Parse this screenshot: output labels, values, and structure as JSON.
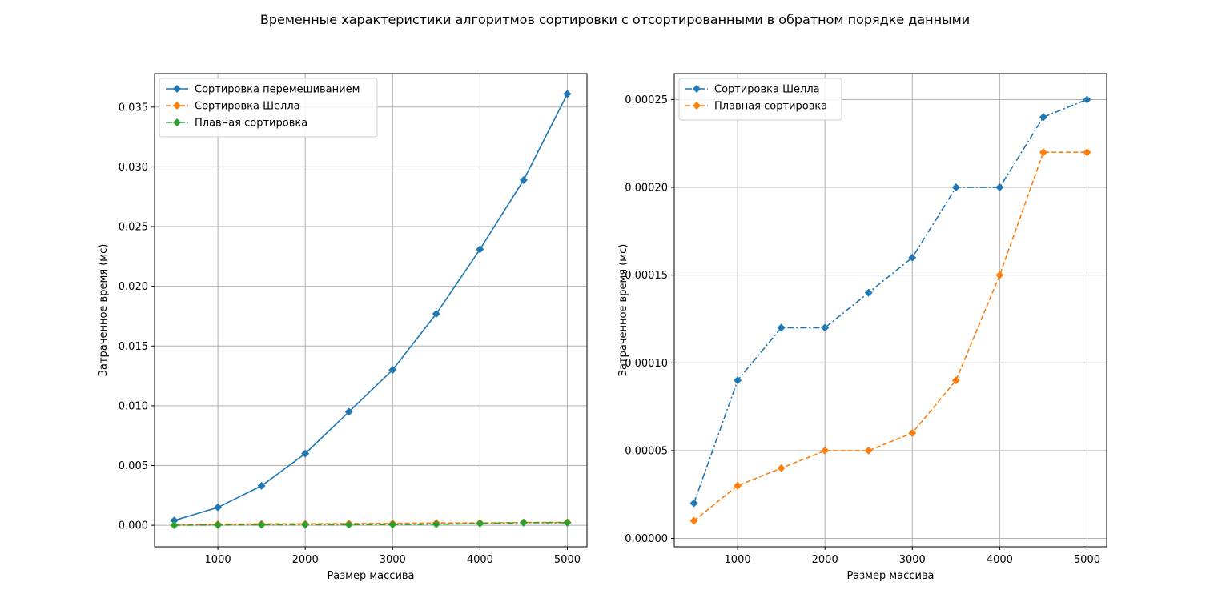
{
  "figure": {
    "title": "Временные характеристики алгоритмов сортировки с отсортированными в обратном порядке данными"
  },
  "colors": {
    "blue": "#1f77b4",
    "orange": "#ff7f0e",
    "green": "#2ca02c",
    "grid": "#b0b0b0"
  },
  "chart_data": [
    {
      "type": "line",
      "title": "",
      "xlabel": "Размер массива",
      "ylabel": "Затраченное время (мс)",
      "xlim": [
        275,
        5225
      ],
      "ylim": [
        -0.0018,
        0.0378
      ],
      "xticks": [
        1000,
        2000,
        3000,
        4000,
        5000
      ],
      "xtick_labels": [
        "1000",
        "2000",
        "3000",
        "4000",
        "5000"
      ],
      "yticks": [
        0,
        0.005,
        0.01,
        0.015,
        0.02,
        0.025,
        0.03,
        0.035
      ],
      "ytick_labels": [
        "0.000",
        "0.005",
        "0.010",
        "0.015",
        "0.020",
        "0.025",
        "0.030",
        "0.035"
      ],
      "grid": true,
      "legend": "upper-left",
      "x": [
        500,
        1000,
        1500,
        2000,
        2500,
        3000,
        3500,
        4000,
        4500,
        5000
      ],
      "series": [
        {
          "name": "Сортировка перемешиванием",
          "color": "#1f77b4",
          "linestyle": "solid",
          "marker": "diamond",
          "values": [
            0.0004,
            0.0015,
            0.0033,
            0.006,
            0.0095,
            0.013,
            0.0177,
            0.0231,
            0.0289,
            0.0361
          ]
        },
        {
          "name": "Сортировка Шелла",
          "color": "#ff7f0e",
          "linestyle": "dashed",
          "marker": "diamond",
          "values": [
            2e-05,
            9e-05,
            0.00012,
            0.00012,
            0.00014,
            0.00016,
            0.0002,
            0.0002,
            0.00024,
            0.00025
          ]
        },
        {
          "name": "Плавная сортировка",
          "color": "#2ca02c",
          "linestyle": "dashdot",
          "marker": "diamond",
          "values": [
            1e-05,
            3e-05,
            4e-05,
            5e-05,
            5e-05,
            6e-05,
            9e-05,
            0.00015,
            0.00022,
            0.00022
          ]
        }
      ]
    },
    {
      "type": "line",
      "title": "",
      "xlabel": "Размер массива",
      "ylabel": "Затраченное время (мс)",
      "xlim": [
        275,
        5225
      ],
      "ylim": [
        -4.8e-06,
        0.0002648
      ],
      "xticks": [
        1000,
        2000,
        3000,
        4000,
        5000
      ],
      "xtick_labels": [
        "1000",
        "2000",
        "3000",
        "4000",
        "5000"
      ],
      "yticks": [
        0,
        5e-05,
        0.0001,
        0.00015,
        0.0002,
        0.00025
      ],
      "ytick_labels": [
        "0.00000",
        "0.00005",
        "0.00010",
        "0.00015",
        "0.00020",
        "0.00025"
      ],
      "grid": true,
      "legend": "upper-left",
      "x": [
        500,
        1000,
        1500,
        2000,
        2500,
        3000,
        3500,
        4000,
        4500,
        5000
      ],
      "series": [
        {
          "name": "Сортировка Шелла",
          "color": "#1f77b4",
          "linestyle": "dashdot",
          "marker": "diamond",
          "values": [
            2e-05,
            9e-05,
            0.00012,
            0.00012,
            0.00014,
            0.00016,
            0.0002,
            0.0002,
            0.00024,
            0.00025
          ]
        },
        {
          "name": "Плавная сортировка",
          "color": "#ff7f0e",
          "linestyle": "dashed",
          "marker": "diamond",
          "values": [
            1e-05,
            3e-05,
            4e-05,
            5e-05,
            5e-05,
            6e-05,
            9e-05,
            0.00015,
            0.00022,
            0.00022
          ]
        }
      ]
    }
  ]
}
